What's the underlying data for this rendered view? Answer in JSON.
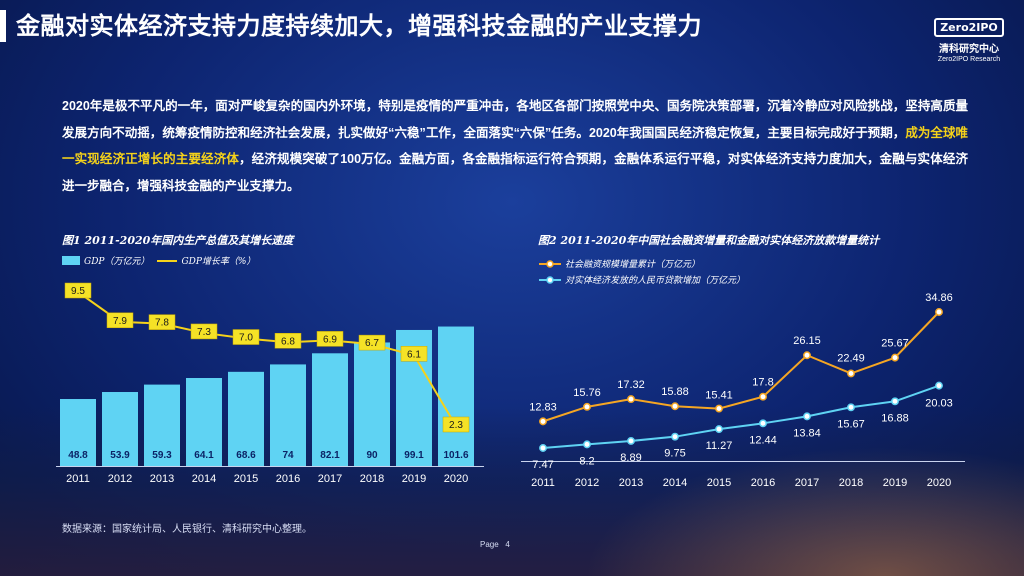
{
  "header": {
    "title": "金融对实体经济支持力度持续加大，增强科技金融的产业支撑力",
    "logo_text": "Zero2IPO",
    "logo_cn": "清科研究中心",
    "logo_en": "Zero2IPO Research"
  },
  "paragraph": {
    "part1": "2020年是极不平凡的一年，面对严峻复杂的国内外环境，特别是疫情的严重冲击，各地区各部门按照党中央、国务院决策部署，沉着冷静应对风险挑战，坚持高质量发展方向不动摇，统筹疫情防控和经济社会发展，扎实做好“六稳”工作，全面落实“六保”任务。2020年我国国民经济稳定恢复，主要目标完成好于预期，",
    "highlight": "成为全球唯一实现经济正增长的主要经济体",
    "part2": "，经济规模突破了100万亿。金融方面，各金融指标运行符合预期，金融体系运行平稳，对实体经济支持力度加大，金融与实体经济进一步融合，增强科技金融的产业支撑力。"
  },
  "chart_data": [
    {
      "type": "bar",
      "title": "图1 2011-2020年国内生产总值及其增长速度",
      "categories": [
        "2011",
        "2012",
        "2013",
        "2014",
        "2015",
        "2016",
        "2017",
        "2018",
        "2019",
        "2020"
      ],
      "series": [
        {
          "name": "GDP（万亿元）",
          "kind": "bar",
          "color": "#5fd3f3",
          "values": [
            48.8,
            53.9,
            59.3,
            64.1,
            68.6,
            74,
            82.1,
            90,
            99.1,
            101.6
          ]
        },
        {
          "name": "GDP增长率（%）",
          "kind": "line",
          "color": "#f5d21a",
          "values": [
            9.5,
            7.9,
            7.8,
            7.3,
            7.0,
            6.8,
            6.9,
            6.7,
            6.1,
            2.3
          ]
        }
      ],
      "labels": {
        "bar": [
          "48.8",
          "53.9",
          "59.3",
          "64.1",
          "68.6",
          "74",
          "82.1",
          "90",
          "99.1",
          "101.6"
        ],
        "line": [
          "9.5",
          "7.9",
          "7.8",
          "7.3",
          "7.0",
          "6.8",
          "6.9",
          "6.7",
          "6.1",
          "2.3"
        ]
      },
      "legend": "top-left",
      "grid": false
    },
    {
      "type": "line",
      "title": "图2 2011-2020年中国社会融资增量和金融对实体经济放款增量统计",
      "categories": [
        "2011",
        "2012",
        "2013",
        "2014",
        "2015",
        "2016",
        "2017",
        "2018",
        "2019",
        "2020"
      ],
      "series": [
        {
          "name": "社会融资规模增量累计（万亿元）",
          "color": "#f5a623",
          "values": [
            12.83,
            15.76,
            17.32,
            15.88,
            15.41,
            17.8,
            26.15,
            22.49,
            25.67,
            34.86
          ]
        },
        {
          "name": "对实体经济发放的人民币贷款增加（万亿元）",
          "color": "#5fd3f3",
          "values": [
            7.47,
            8.2,
            8.89,
            9.75,
            11.27,
            12.44,
            13.84,
            15.67,
            16.88,
            20.03
          ]
        }
      ],
      "labels": {
        "s1": [
          "12.83",
          "15.76",
          "17.32",
          "15.88",
          "15.41",
          "17.8",
          "26.15",
          "22.49",
          "25.67",
          "34.86"
        ],
        "s2": [
          "7.47",
          "8.2",
          "8.89",
          "9.75",
          "11.27",
          "12.44",
          "13.84",
          "15.67",
          "16.88",
          "20.03"
        ]
      },
      "legend": "top-left",
      "grid": false
    }
  ],
  "footer": {
    "source": "数据来源：国家统计局、人民银行、清科研究中心整理。",
    "page_label": "Page",
    "page_number": "4"
  }
}
